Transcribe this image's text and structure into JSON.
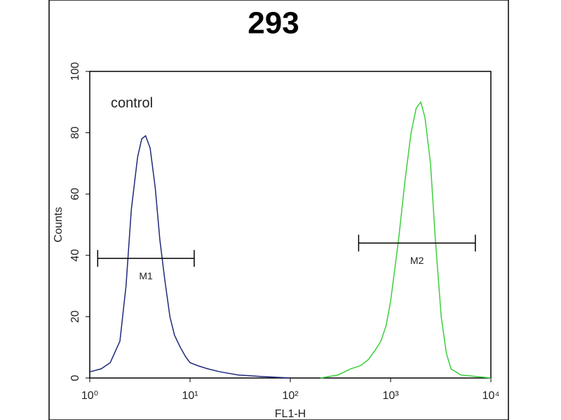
{
  "chart_data": {
    "type": "histogram-line",
    "title": "293",
    "x_label": "FL1-H",
    "y_label": "Counts",
    "xscale": "log",
    "xlim": [
      1,
      10000
    ],
    "ylim": [
      0,
      100
    ],
    "xticks": [
      {
        "value": 1,
        "label": "10⁰"
      },
      {
        "value": 10,
        "label": "10¹"
      },
      {
        "value": 100,
        "label": "10²"
      },
      {
        "value": 1000,
        "label": "10³"
      },
      {
        "value": 10000,
        "label": "10⁴"
      }
    ],
    "yticks": [
      0,
      20,
      40,
      60,
      80,
      100
    ],
    "series": [
      {
        "name": "control",
        "color": "#1f2a7a",
        "x": [
          1,
          1.3,
          1.6,
          2,
          2.3,
          2.6,
          3,
          3.3,
          3.6,
          4,
          4.5,
          5,
          5.6,
          6.3,
          7,
          8,
          9,
          10,
          12,
          15,
          20,
          30,
          50,
          100
        ],
        "values": [
          2,
          3,
          5,
          12,
          30,
          55,
          72,
          78,
          79,
          75,
          62,
          45,
          32,
          20,
          14,
          10,
          7,
          5,
          4,
          3,
          2,
          1,
          0.5,
          0
        ]
      },
      {
        "color": "#3ccf3c",
        "x": [
          200,
          300,
          400,
          500,
          600,
          700,
          800,
          900,
          1000,
          1200,
          1400,
          1600,
          1800,
          2000,
          2200,
          2500,
          2800,
          3200,
          3600,
          4000,
          5000,
          7000,
          10000
        ],
        "values": [
          0,
          1,
          3,
          4,
          6,
          9,
          12,
          17,
          25,
          45,
          65,
          80,
          88,
          90,
          85,
          70,
          45,
          20,
          8,
          3,
          1,
          0.5,
          0
        ]
      }
    ],
    "markers": [
      {
        "label": "M1",
        "x": [
          1.2,
          11
        ],
        "y": 39
      },
      {
        "label": "M2",
        "x": [
          480,
          7000
        ],
        "y": 44
      }
    ]
  }
}
